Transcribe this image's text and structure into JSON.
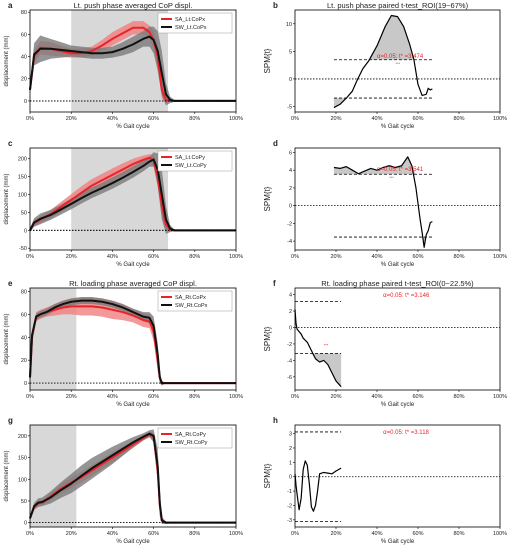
{
  "colors": {
    "sa": "#e8232a",
    "sa_band": "#f08080",
    "sw": "#111111",
    "sw_band": "#7a7a7a",
    "roi": "#d8d8d8",
    "threshold_text": "#e8232a"
  },
  "chart_data": [
    {
      "id": "a",
      "type": "line",
      "letter": "a",
      "title": "Lt. push phase averaged CoP displ.",
      "xlabel": "% Gait cycle",
      "ylabel": "displacement (mm)",
      "xlim": [
        0,
        100
      ],
      "ylim": [
        -10,
        82
      ],
      "yticks": [
        0,
        20,
        40,
        60,
        80
      ],
      "xticks": [
        0,
        20,
        40,
        60,
        80,
        100
      ],
      "xticklabels": [
        "0%",
        "20%",
        "40%",
        "60%",
        "80%",
        "100%"
      ],
      "roi": [
        20,
        67
      ],
      "legend": "top-right",
      "series": [
        {
          "name": "SA_Lt.CoPx",
          "color": "#e8232a",
          "band_color": "#f08080",
          "x": [
            0,
            2,
            5,
            10,
            15,
            20,
            25,
            30,
            35,
            40,
            45,
            50,
            55,
            58,
            60,
            62,
            64,
            66,
            68,
            70,
            75,
            80,
            90,
            100
          ],
          "y": [
            10,
            40,
            48,
            47,
            45,
            43,
            43,
            45,
            50,
            56,
            61,
            66,
            66,
            62,
            55,
            40,
            10,
            1,
            0,
            0,
            0,
            0,
            0,
            0
          ],
          "sd": [
            3,
            6,
            6,
            6,
            5,
            4,
            4,
            4,
            5,
            6,
            6,
            6,
            6,
            6,
            8,
            10,
            8,
            3,
            1,
            0,
            0,
            0,
            0,
            0
          ]
        },
        {
          "name": "SW_Lt.CoPx",
          "color": "#111111",
          "band_color": "#7a7a7a",
          "x": [
            0,
            2,
            5,
            10,
            15,
            20,
            25,
            30,
            35,
            40,
            45,
            50,
            55,
            58,
            60,
            62,
            64,
            66,
            68,
            70,
            75,
            80,
            90,
            100
          ],
          "y": [
            10,
            42,
            47,
            47,
            46,
            45,
            44,
            43,
            43,
            44,
            47,
            51,
            56,
            58,
            55,
            45,
            25,
            6,
            1,
            0,
            0,
            0,
            0,
            0
          ],
          "sd": [
            4,
            10,
            12,
            9,
            7,
            5,
            5,
            5,
            5,
            5,
            6,
            7,
            7,
            9,
            12,
            18,
            20,
            10,
            3,
            1,
            0,
            0,
            0,
            0
          ]
        }
      ]
    },
    {
      "id": "b",
      "type": "line",
      "letter": "b",
      "title": "Lt. push phase paired t-test_ROI(19~67%)",
      "xlabel": "% Gait cycle",
      "ylabel": "SPM{t}",
      "xlim": [
        0,
        100
      ],
      "ylim": [
        -6,
        12.5
      ],
      "yticks": [
        -5,
        0,
        5,
        10
      ],
      "xticks": [
        0,
        20,
        40,
        60,
        80,
        100
      ],
      "xticklabels": [
        "0%",
        "20%",
        "40%",
        "60%",
        "80%",
        "100%"
      ],
      "threshold": 3.474,
      "threshold_label": "α=0.05:  t* =3.474",
      "cluster_label": "***",
      "series": [
        {
          "x": [
            19,
            22,
            25,
            28,
            30,
            33,
            36,
            40,
            44,
            47,
            50,
            53,
            56,
            58,
            60,
            62,
            64,
            65,
            66,
            67
          ],
          "y": [
            -5.2,
            -4.6,
            -3.5,
            -2.2,
            -0.5,
            1.8,
            3.3,
            6.0,
            9.5,
            11.5,
            11.3,
            9.5,
            6.2,
            3.5,
            -1.0,
            -3.0,
            -2.8,
            -1.7,
            -2.0,
            -1.8
          ]
        }
      ]
    },
    {
      "id": "c",
      "type": "line",
      "letter": "c",
      "title": "",
      "xlabel": "% Gait cycle",
      "ylabel": "displacement (mm)",
      "xlim": [
        0,
        100
      ],
      "ylim": [
        -55,
        230
      ],
      "yticks": [
        -50,
        0,
        50,
        100,
        150,
        200
      ],
      "xticks": [
        0,
        20,
        40,
        60,
        80,
        100
      ],
      "xticklabels": [
        "0%",
        "20%",
        "40%",
        "60%",
        "80%",
        "100%"
      ],
      "roi": [
        20,
        67
      ],
      "legend": "top-right",
      "series": [
        {
          "name": "SA_Lt.CoPy",
          "color": "#e8232a",
          "band_color": "#f08080",
          "x": [
            0,
            2,
            5,
            10,
            15,
            20,
            25,
            30,
            35,
            40,
            45,
            50,
            55,
            58,
            60,
            62,
            64,
            66,
            68,
            70,
            75,
            80,
            90,
            100
          ],
          "y": [
            0,
            20,
            30,
            45,
            65,
            85,
            105,
            125,
            140,
            155,
            170,
            185,
            197,
            203,
            195,
            150,
            70,
            15,
            3,
            0,
            0,
            0,
            0,
            0
          ],
          "sd": [
            3,
            8,
            10,
            12,
            14,
            16,
            18,
            18,
            18,
            18,
            17,
            15,
            12,
            10,
            15,
            30,
            35,
            15,
            5,
            2,
            0,
            0,
            0,
            0
          ]
        },
        {
          "name": "SW_Lt.CoPy",
          "color": "#111111",
          "band_color": "#7a7a7a",
          "x": [
            0,
            2,
            5,
            10,
            15,
            20,
            25,
            30,
            35,
            40,
            45,
            50,
            55,
            58,
            60,
            62,
            64,
            66,
            68,
            70,
            75,
            80,
            90,
            100
          ],
          "y": [
            0,
            22,
            32,
            43,
            58,
            74,
            90,
            105,
            118,
            132,
            147,
            163,
            180,
            192,
            198,
            170,
            100,
            30,
            5,
            0,
            0,
            0,
            0,
            0
          ],
          "sd": [
            5,
            12,
            15,
            14,
            14,
            15,
            15,
            15,
            15,
            16,
            16,
            16,
            15,
            14,
            20,
            45,
            70,
            40,
            10,
            3,
            0,
            0,
            0,
            0
          ]
        }
      ]
    },
    {
      "id": "d",
      "type": "line",
      "letter": "d",
      "title": "",
      "xlabel": "% Gait cycle",
      "ylabel": "SPM{t}",
      "xlim": [
        0,
        100
      ],
      "ylim": [
        -5,
        6.5
      ],
      "yticks": [
        -4,
        -2,
        0,
        2,
        4,
        6
      ],
      "xticks": [
        0,
        20,
        40,
        60,
        80,
        100
      ],
      "xticklabels": [
        "0%",
        "20%",
        "40%",
        "60%",
        "80%",
        "100%"
      ],
      "threshold": 3.541,
      "threshold_label": "α=0.05:  t* =3.541",
      "cluster_label": "***",
      "series": [
        {
          "x": [
            19,
            22,
            25,
            28,
            31,
            34,
            37,
            40,
            43,
            46,
            49,
            52,
            55,
            57,
            59,
            61,
            62,
            63,
            64,
            65,
            66,
            67
          ],
          "y": [
            4.3,
            4.2,
            4.4,
            4.0,
            3.6,
            3.9,
            4.2,
            4.0,
            4.3,
            4.5,
            4.3,
            4.5,
            5.5,
            4.5,
            2.0,
            -1.5,
            -3.0,
            -4.7,
            -3.3,
            -2.8,
            -1.9,
            -1.8
          ]
        }
      ]
    },
    {
      "id": "e",
      "type": "line",
      "letter": "e",
      "title": "Rt. loading phase averaged CoP displ.",
      "xlabel": "% Gait cycle",
      "ylabel": "displacement (mm)",
      "xlim": [
        0,
        100
      ],
      "ylim": [
        -6,
        83
      ],
      "yticks": [
        0,
        20,
        40,
        60,
        80
      ],
      "xticks": [
        0,
        20,
        40,
        60,
        80,
        100
      ],
      "xticklabels": [
        "0%",
        "20%",
        "40%",
        "60%",
        "80%",
        "100%"
      ],
      "roi": [
        0,
        22.5
      ],
      "legend": "top-right",
      "series": [
        {
          "name": "SA_Rt.CoPx",
          "color": "#e8232a",
          "band_color": "#f08080",
          "x": [
            0,
            1,
            3,
            5,
            8,
            12,
            16,
            20,
            25,
            30,
            35,
            40,
            45,
            50,
            55,
            58,
            60,
            62,
            63,
            64,
            66,
            70,
            80,
            100
          ],
          "y": [
            5,
            40,
            58,
            60,
            62,
            64,
            66,
            67,
            67,
            67,
            66,
            64,
            62,
            59,
            55,
            54,
            45,
            20,
            5,
            0,
            0,
            0,
            0,
            0
          ],
          "sd": [
            2,
            5,
            4,
            4,
            4,
            5,
            6,
            7,
            8,
            8,
            8,
            8,
            7,
            6,
            6,
            6,
            8,
            10,
            5,
            2,
            0,
            0,
            0,
            0
          ]
        },
        {
          "name": "SW_Rt.CoPx",
          "color": "#111111",
          "band_color": "#7a7a7a",
          "x": [
            0,
            1,
            3,
            5,
            8,
            12,
            16,
            20,
            25,
            30,
            35,
            40,
            45,
            50,
            55,
            58,
            60,
            62,
            63,
            64,
            66,
            70,
            80,
            100
          ],
          "y": [
            5,
            42,
            58,
            60,
            62,
            66,
            69,
            71,
            72,
            72,
            71,
            69,
            66,
            62,
            58,
            57,
            50,
            25,
            5,
            0,
            0,
            0,
            0,
            0
          ],
          "sd": [
            2,
            4,
            3,
            3,
            3,
            3,
            3,
            3,
            3,
            3,
            3,
            3,
            3,
            3,
            4,
            5,
            8,
            10,
            5,
            2,
            0,
            0,
            0,
            0
          ]
        }
      ]
    },
    {
      "id": "f",
      "type": "line",
      "letter": "f",
      "title": "Rt. loading phase paired t-test_ROI(0~22.5%)",
      "xlabel": "% Gait cycle",
      "ylabel": "SPM{t}",
      "xlim": [
        0,
        100
      ],
      "ylim": [
        -7.6,
        4.8
      ],
      "yticks": [
        -6,
        -4,
        -2,
        0,
        2,
        4
      ],
      "xticks": [
        0,
        20,
        40,
        60,
        80,
        100
      ],
      "xticklabels": [
        "0%",
        "20%",
        "40%",
        "60%",
        "80%",
        "100%"
      ],
      "threshold": 3.146,
      "threshold_label": "α=0.05:  t* =3.146",
      "cluster_label": "***",
      "series": [
        {
          "x": [
            0,
            0.5,
            1,
            2,
            3,
            4,
            6,
            8,
            10,
            12,
            14,
            16,
            18,
            20,
            22.5
          ],
          "y": [
            2.2,
            0.5,
            -0.2,
            -0.5,
            -0.8,
            -1.3,
            -1.8,
            -2.8,
            -3.8,
            -4.2,
            -4.0,
            -4.5,
            -5.5,
            -6.5,
            -7.2
          ]
        }
      ]
    },
    {
      "id": "g",
      "type": "line",
      "letter": "g",
      "title": "",
      "xlabel": "% Gait cycle",
      "ylabel": "displacement (mm)",
      "xlim": [
        0,
        100
      ],
      "ylim": [
        -10,
        225
      ],
      "yticks": [
        0,
        50,
        100,
        150,
        200
      ],
      "xticks": [
        0,
        20,
        40,
        60,
        80,
        100
      ],
      "xticklabels": [
        "0%",
        "20%",
        "40%",
        "60%",
        "80%",
        "100%"
      ],
      "roi": [
        0,
        22.5
      ],
      "legend": "top-right",
      "series": [
        {
          "name": "SA_Rt.CoPy",
          "color": "#e8232a",
          "band_color": "#f08080",
          "x": [
            0,
            2,
            4,
            6,
            10,
            15,
            20,
            25,
            30,
            35,
            40,
            45,
            50,
            55,
            58,
            60,
            62,
            63,
            64,
            66,
            70,
            80,
            100
          ],
          "y": [
            10,
            35,
            45,
            46,
            60,
            78,
            92,
            105,
            120,
            135,
            150,
            165,
            180,
            195,
            203,
            198,
            120,
            40,
            5,
            0,
            0,
            0,
            0
          ],
          "sd": [
            3,
            5,
            6,
            6,
            8,
            10,
            12,
            12,
            12,
            12,
            12,
            10,
            8,
            6,
            6,
            10,
            25,
            20,
            5,
            2,
            0,
            0,
            0
          ]
        },
        {
          "name": "SW_Rt.CoPy",
          "color": "#111111",
          "band_color": "#7a7a7a",
          "x": [
            0,
            2,
            4,
            6,
            10,
            15,
            20,
            25,
            30,
            35,
            40,
            45,
            50,
            55,
            58,
            60,
            62,
            63,
            64,
            66,
            70,
            80,
            100
          ],
          "y": [
            10,
            38,
            46,
            48,
            58,
            75,
            90,
            108,
            125,
            140,
            155,
            170,
            185,
            198,
            205,
            200,
            130,
            45,
            5,
            0,
            0,
            0,
            0
          ],
          "sd": [
            4,
            8,
            10,
            10,
            14,
            18,
            22,
            24,
            24,
            22,
            20,
            16,
            12,
            8,
            8,
            15,
            40,
            30,
            8,
            3,
            0,
            0,
            0
          ]
        }
      ]
    },
    {
      "id": "h",
      "type": "line",
      "letter": "h",
      "title": "",
      "xlabel": "% Gait cycle",
      "ylabel": "SPM{t}",
      "xlim": [
        0,
        100
      ],
      "ylim": [
        -3.5,
        3.6
      ],
      "yticks": [
        -3,
        -2,
        -1,
        0,
        1,
        2,
        3
      ],
      "xticks": [
        0,
        20,
        40,
        60,
        80,
        100
      ],
      "xticklabels": [
        "0%",
        "20%",
        "40%",
        "60%",
        "80%",
        "100%"
      ],
      "threshold": 3.118,
      "threshold_label": "α=0.05:  t* =3.118",
      "series": [
        {
          "x": [
            0,
            0.5,
            1,
            2,
            3,
            4,
            5,
            6,
            7,
            8,
            9,
            10,
            11,
            12,
            14,
            16,
            18,
            20,
            22.5
          ],
          "y": [
            0.2,
            -0.6,
            -1.2,
            -2.3,
            -1.5,
            0.5,
            1.1,
            0.8,
            -0.5,
            -2.1,
            -2.4,
            -2.0,
            -1.0,
            0.2,
            0.3,
            0.25,
            0.2,
            0.4,
            0.6
          ]
        }
      ]
    }
  ]
}
